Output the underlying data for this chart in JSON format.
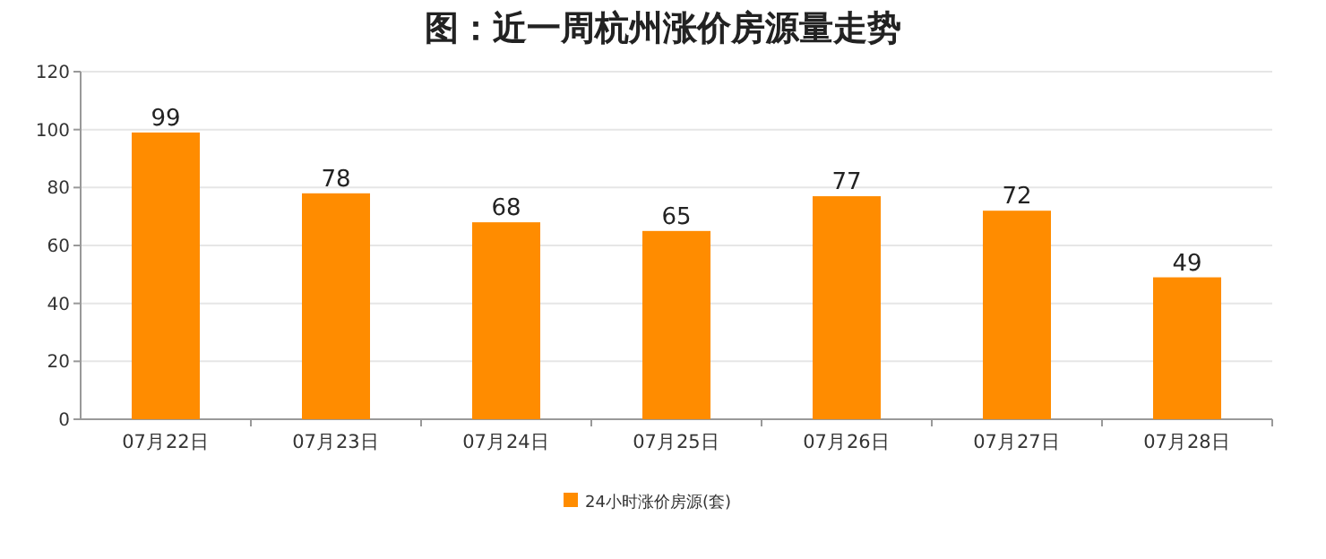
{
  "chart_data": {
    "type": "bar",
    "title": "图：近一周杭州涨价房源量走势",
    "categories": [
      "07月22日",
      "07月23日",
      "07月24日",
      "07月25日",
      "07月26日",
      "07月27日",
      "07月28日"
    ],
    "series": [
      {
        "name": "24小时涨价房源(套)",
        "color": "#ff8c00",
        "values": [
          99,
          78,
          68,
          65,
          77,
          72,
          49
        ]
      }
    ],
    "ylim": [
      0,
      120
    ],
    "yticks": [
      0,
      20,
      40,
      60,
      80,
      100,
      120
    ],
    "grid": "y",
    "legend": "bottom",
    "data_labels": true
  }
}
